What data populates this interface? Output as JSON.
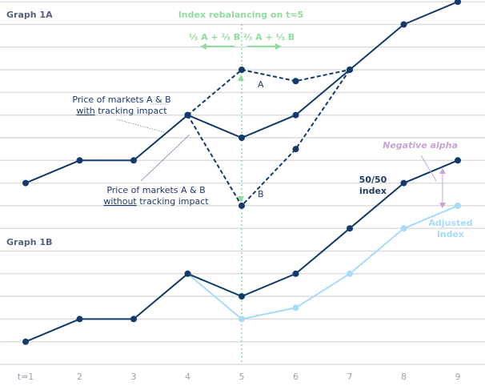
{
  "chart_data": {
    "type": "line",
    "x": [
      1,
      2,
      3,
      4,
      5,
      6,
      7,
      8,
      9
    ],
    "xtick_labels": [
      "t=1",
      "2",
      "3",
      "4",
      "5",
      "6",
      "7",
      "8",
      "9"
    ],
    "ylim": [
      0,
      16
    ],
    "grid": true,
    "panels": [
      {
        "title": "Graph 1A",
        "series": [
          {
            "key": "index",
            "values": [
              8,
              9,
              9,
              11,
              10,
              11,
              13,
              15,
              16
            ],
            "style": "solid",
            "color": "#123a6b"
          },
          {
            "key": "A",
            "name": "A",
            "x": [
              4,
              5,
              6,
              7
            ],
            "values": [
              11,
              13,
              12.5,
              13
            ],
            "style": "dashed",
            "color": "#123a6b"
          },
          {
            "key": "B",
            "name": "B",
            "x": [
              4,
              5,
              6,
              7
            ],
            "values": [
              11,
              7,
              9.5,
              13
            ],
            "style": "dashed",
            "color": "#123a6b"
          }
        ]
      },
      {
        "title": "Graph 1B",
        "series": [
          {
            "key": "index",
            "name": "50/50 index",
            "values": [
              1,
              2,
              2,
              4,
              3,
              4,
              6,
              8,
              9
            ],
            "style": "solid",
            "color": "#123a6b"
          },
          {
            "key": "adjusted",
            "name": "Adjusted index",
            "x": [
              4,
              5,
              6,
              7,
              8,
              9
            ],
            "values": [
              4,
              2,
              2.5,
              4,
              6,
              7
            ],
            "style": "solid",
            "color": "#a6dcf5"
          }
        ]
      }
    ],
    "annotations": {
      "rebalance": "Index rebalancing on t=5",
      "rebalance_x": 5,
      "left_weights": "⅓ A + ⅔ B",
      "right_weights": "⅔ A + ⅓ B",
      "with_line1": "Price of markets A & B",
      "with_u": "with",
      "with_rest": " tracking impact",
      "without_line1": "Price of markets A & B",
      "without_u": "without",
      "without_rest": " tracking impact",
      "neg_alpha": "Negative alpha",
      "index_l1": "50/50",
      "index_l2": "index",
      "adj_l1": "Adjusted",
      "adj_l2": "index"
    },
    "colors": {
      "navy": "#123a6b",
      "light": "#a6dcf5",
      "green": "#8fdc9c",
      "purple": "#c9a3d3",
      "grid": "#dcdcdc"
    }
  }
}
